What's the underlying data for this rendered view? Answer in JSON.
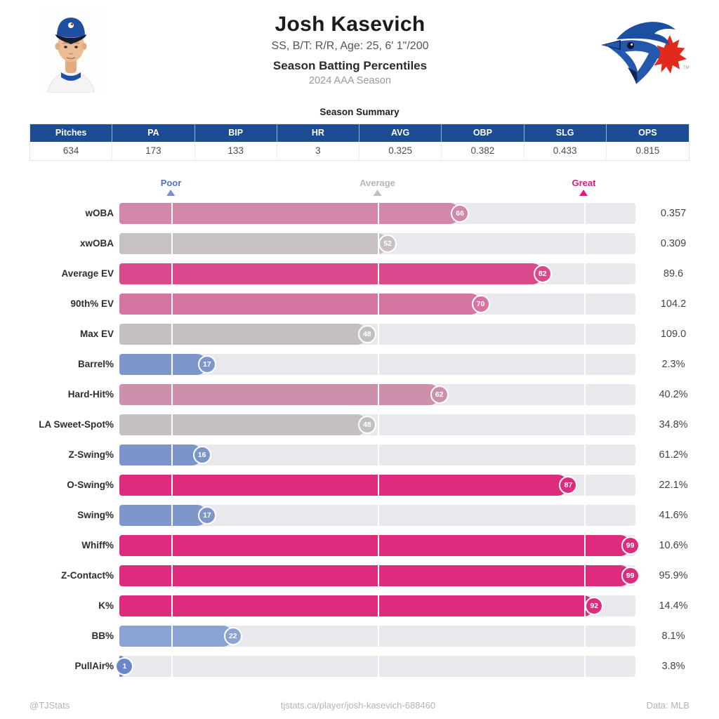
{
  "header": {
    "player_name": "Josh Kasevich",
    "bio": "SS, B/T: R/R, Age: 25, 6' 1\"/200",
    "subtitle": "Season Batting Percentiles",
    "season": "2024 AAA Season"
  },
  "summary": {
    "title": "Season Summary",
    "header_bg": "#1b4c94",
    "columns": [
      "Pitches",
      "PA",
      "BIP",
      "HR",
      "AVG",
      "OBP",
      "SLG",
      "OPS"
    ],
    "values": [
      "634",
      "173",
      "133",
      "3",
      "0.325",
      "0.382",
      "0.433",
      "0.815"
    ]
  },
  "legend": {
    "markers": [
      {
        "label": "Poor",
        "position_pct": 10,
        "color": "#5070c5",
        "triangle_color": "#7a8ed1"
      },
      {
        "label": "Average",
        "position_pct": 50,
        "color": "#b9b4b8",
        "triangle_color": "#c2bdc1"
      },
      {
        "label": "Great",
        "position_pct": 90,
        "color": "#e51782",
        "triangle_color": "#e51782"
      }
    ]
  },
  "chart_data": {
    "type": "bar",
    "orientation": "horizontal",
    "xlim": [
      0,
      100
    ],
    "gridlines_pct": [
      10,
      50,
      90
    ],
    "track_color": "#e9e8ed",
    "rows": [
      {
        "metric": "wOBA",
        "percentile": 66,
        "value": "0.357",
        "color": "#d186aa"
      },
      {
        "metric": "xwOBA",
        "percentile": 52,
        "value": "0.309",
        "color": "#c7c1c5"
      },
      {
        "metric": "Average EV",
        "percentile": 82,
        "value": "89.6",
        "color": "#d9498c"
      },
      {
        "metric": "90th% EV",
        "percentile": 70,
        "value": "104.2",
        "color": "#d674a2"
      },
      {
        "metric": "Max EV",
        "percentile": 48,
        "value": "109.0",
        "color": "#c3bfc2"
      },
      {
        "metric": "Barrel%",
        "percentile": 17,
        "value": "2.3%",
        "color": "#7e97cb"
      },
      {
        "metric": "Hard-Hit%",
        "percentile": 62,
        "value": "40.2%",
        "color": "#cc90ad"
      },
      {
        "metric": "LA Sweet-Spot%",
        "percentile": 48,
        "value": "34.8%",
        "color": "#c3bfc2"
      },
      {
        "metric": "Z-Swing%",
        "percentile": 16,
        "value": "61.2%",
        "color": "#7b94c9"
      },
      {
        "metric": "O-Swing%",
        "percentile": 87,
        "value": "22.1%",
        "color": "#dd2b7d"
      },
      {
        "metric": "Swing%",
        "percentile": 17,
        "value": "41.6%",
        "color": "#7e97cb"
      },
      {
        "metric": "Whiff%",
        "percentile": 99,
        "value": "10.6%",
        "color": "#dd2b7d"
      },
      {
        "metric": "Z-Contact%",
        "percentile": 99,
        "value": "95.9%",
        "color": "#dd2b7d"
      },
      {
        "metric": "K%",
        "percentile": 92,
        "value": "14.4%",
        "color": "#dd2b7d"
      },
      {
        "metric": "BB%",
        "percentile": 22,
        "value": "8.1%",
        "color": "#8ba3d3"
      },
      {
        "metric": "PullAir%",
        "percentile": 1,
        "value": "3.8%",
        "color": "#6787c6"
      }
    ]
  },
  "footer": {
    "left": "@TJStats",
    "center": "tjstats.ca/player/josh-kasevich-688460",
    "right": "Data: MLB"
  }
}
